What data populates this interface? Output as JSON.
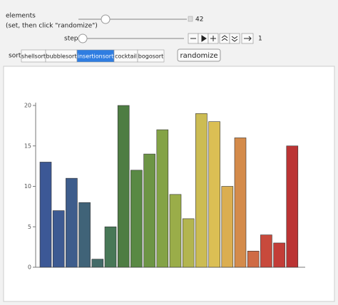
{
  "controls": {
    "elements_label": "elements",
    "elements_hint": "(set, then click \"randomize\")",
    "elements_value": "42",
    "step_label": "step",
    "step_value": "1",
    "sort_label": "sort",
    "sort_options": [
      "shellsort",
      "bubblesort",
      "insertionsort",
      "cocktail",
      "bogosort"
    ],
    "selected_sort": "insertionsort",
    "randomize_button": "randomize"
  },
  "chart_data": {
    "type": "bar",
    "values": [
      13,
      7,
      11,
      8,
      1,
      5,
      20,
      12,
      14,
      17,
      9,
      6,
      19,
      18,
      10,
      16,
      2,
      4,
      3,
      15
    ],
    "colors": [
      "#3c5896",
      "#3d5a92",
      "#3e5d8c",
      "#406378",
      "#436b68",
      "#487857",
      "#4e7d43",
      "#598944",
      "#6d9545",
      "#84a346",
      "#9aad49",
      "#b3b550",
      "#ccbc53",
      "#dbbf54",
      "#dbae50",
      "#d48b4b",
      "#cf6b45",
      "#c84a3c",
      "#c33d38",
      "#bb3434"
    ],
    "ylim": [
      0,
      20
    ],
    "yticks": [
      0,
      5,
      10,
      15,
      20
    ]
  }
}
